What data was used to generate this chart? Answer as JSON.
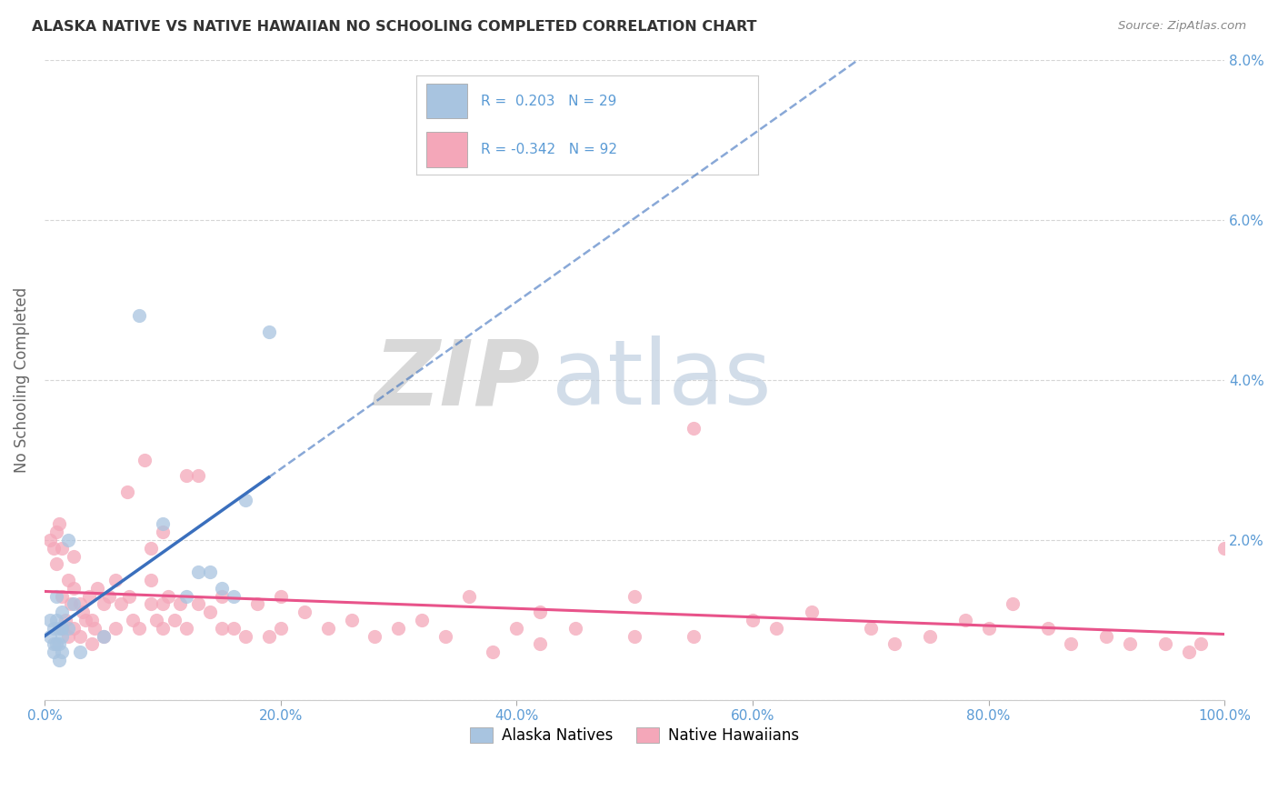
{
  "title": "ALASKA NATIVE VS NATIVE HAWAIIAN NO SCHOOLING COMPLETED CORRELATION CHART",
  "source": "Source: ZipAtlas.com",
  "ylabel": "No Schooling Completed",
  "xlim": [
    0,
    1.0
  ],
  "ylim": [
    0,
    0.08
  ],
  "x_ticks": [
    0.0,
    0.2,
    0.4,
    0.6,
    0.8,
    1.0
  ],
  "y_ticks": [
    0.0,
    0.02,
    0.04,
    0.06,
    0.08
  ],
  "alaska_color": "#a8c4e0",
  "alaska_line_color": "#3a6fbd",
  "hawaiian_color": "#f4a7b9",
  "hawaiian_line_color": "#e8538a",
  "alaska_r": 0.203,
  "alaska_n": 29,
  "hawaiian_r": -0.342,
  "hawaiian_n": 92,
  "legend_label_alaska": "Alaska Natives",
  "legend_label_hawaiian": "Native Hawaiians",
  "background_color": "#ffffff",
  "grid_color": "#cccccc",
  "right_axis_color": "#5b9bd5",
  "bottom_axis_color": "#5b9bd5",
  "alaska_points_x": [
    0.005,
    0.005,
    0.008,
    0.008,
    0.008,
    0.01,
    0.01,
    0.01,
    0.012,
    0.012,
    0.012,
    0.015,
    0.015,
    0.015,
    0.015,
    0.02,
    0.02,
    0.025,
    0.03,
    0.05,
    0.08,
    0.1,
    0.12,
    0.13,
    0.14,
    0.15,
    0.16,
    0.17,
    0.19
  ],
  "alaska_points_y": [
    0.008,
    0.01,
    0.006,
    0.007,
    0.009,
    0.007,
    0.01,
    0.013,
    0.005,
    0.007,
    0.009,
    0.006,
    0.008,
    0.009,
    0.011,
    0.009,
    0.02,
    0.012,
    0.006,
    0.008,
    0.048,
    0.022,
    0.013,
    0.016,
    0.016,
    0.014,
    0.013,
    0.025,
    0.046
  ],
  "hawaiian_points_x": [
    0.005,
    0.008,
    0.01,
    0.01,
    0.012,
    0.015,
    0.015,
    0.015,
    0.018,
    0.02,
    0.02,
    0.022,
    0.025,
    0.025,
    0.025,
    0.03,
    0.03,
    0.032,
    0.035,
    0.038,
    0.04,
    0.04,
    0.042,
    0.045,
    0.05,
    0.05,
    0.055,
    0.06,
    0.06,
    0.065,
    0.07,
    0.072,
    0.075,
    0.08,
    0.085,
    0.09,
    0.09,
    0.09,
    0.095,
    0.1,
    0.1,
    0.1,
    0.105,
    0.11,
    0.115,
    0.12,
    0.12,
    0.13,
    0.13,
    0.14,
    0.15,
    0.15,
    0.16,
    0.17,
    0.18,
    0.19,
    0.2,
    0.2,
    0.22,
    0.24,
    0.26,
    0.28,
    0.3,
    0.32,
    0.34,
    0.36,
    0.4,
    0.42,
    0.45,
    0.5,
    0.5,
    0.55,
    0.6,
    0.62,
    0.65,
    0.7,
    0.72,
    0.75,
    0.78,
    0.8,
    0.82,
    0.85,
    0.87,
    0.9,
    0.92,
    0.95,
    0.97,
    0.98,
    1.0,
    0.55,
    0.38,
    0.42
  ],
  "hawaiian_points_y": [
    0.02,
    0.019,
    0.021,
    0.017,
    0.022,
    0.009,
    0.013,
    0.019,
    0.01,
    0.008,
    0.015,
    0.012,
    0.009,
    0.014,
    0.018,
    0.008,
    0.012,
    0.011,
    0.01,
    0.013,
    0.007,
    0.01,
    0.009,
    0.014,
    0.008,
    0.012,
    0.013,
    0.009,
    0.015,
    0.012,
    0.026,
    0.013,
    0.01,
    0.009,
    0.03,
    0.012,
    0.015,
    0.019,
    0.01,
    0.009,
    0.012,
    0.021,
    0.013,
    0.01,
    0.012,
    0.009,
    0.028,
    0.012,
    0.028,
    0.011,
    0.009,
    0.013,
    0.009,
    0.008,
    0.012,
    0.008,
    0.013,
    0.009,
    0.011,
    0.009,
    0.01,
    0.008,
    0.009,
    0.01,
    0.008,
    0.013,
    0.009,
    0.011,
    0.009,
    0.008,
    0.013,
    0.008,
    0.01,
    0.009,
    0.011,
    0.009,
    0.007,
    0.008,
    0.01,
    0.009,
    0.012,
    0.009,
    0.007,
    0.008,
    0.007,
    0.007,
    0.006,
    0.007,
    0.019,
    0.034,
    0.006,
    0.007
  ]
}
